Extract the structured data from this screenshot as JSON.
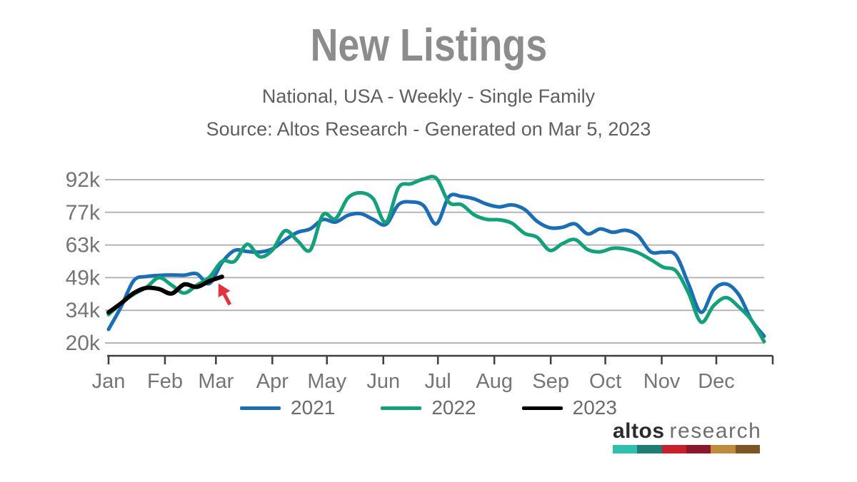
{
  "header": {
    "title": "New Listings",
    "subtitle": "National, USA - Weekly - Single Family",
    "source_line": "Source: Altos Research - Generated on Mar 5, 2023"
  },
  "chart_data": {
    "type": "line",
    "title": "New Listings",
    "subtitle": "National, USA - Weekly - Single Family",
    "source": "Source: Altos Research - Generated on Mar 5, 2023",
    "unit": "new listings, thousands (weekly)",
    "x_axis": {
      "tick_labels": [
        "Jan",
        "Feb",
        "Mar",
        "Apr",
        "May",
        "Jun",
        "Jul",
        "Aug",
        "Sep",
        "Oct",
        "Nov",
        "Dec"
      ],
      "range": "full calendar year, weekly points",
      "grid": false
    },
    "y_axis": {
      "tick_labels": [
        "92k",
        "77k",
        "63k",
        "49k",
        "34k",
        "20k"
      ],
      "min_k": 20,
      "max_k": 92,
      "grid": true
    },
    "legend_position": "bottom-center",
    "series": [
      {
        "name": "2021",
        "color": "#1b6eb5",
        "values_k": [
          26,
          36,
          47.5,
          49.3,
          49.8,
          50,
          49.9,
          50.5,
          46.2,
          55.5,
          60.8,
          60.3,
          60.1,
          61.5,
          65.5,
          68.8,
          70.3,
          74.4,
          73.3,
          76.3,
          77,
          74.5,
          72.3,
          81,
          82.2,
          80.5,
          72.5,
          84.5,
          84.6,
          83.5,
          81.2,
          80,
          80.9,
          78.9,
          73.6,
          70.8,
          71,
          72.5,
          68.1,
          70.3,
          68.8,
          69.7,
          67.3,
          60.2,
          60,
          58.7,
          46,
          33.5,
          43.5,
          46,
          41.2,
          30,
          23
        ]
      },
      {
        "name": "2022",
        "color": "#12a17a",
        "values_k": [
          32.5,
          37.5,
          41.5,
          44.5,
          48.8,
          45.5,
          42,
          45.5,
          49,
          56,
          56,
          63.5,
          58,
          61,
          69.5,
          65,
          61,
          76.5,
          74.8,
          84,
          86.2,
          83.5,
          73.2,
          88.5,
          90.2,
          92.3,
          92.6,
          82,
          81,
          76.5,
          74.5,
          74.3,
          72.8,
          68.3,
          66.6,
          60.8,
          63.8,
          65.6,
          61.2,
          60.2,
          61.8,
          61.4,
          59.8,
          56.8,
          53.4,
          51.8,
          42,
          29.2,
          36.5,
          40,
          35.8,
          30,
          20.6
        ]
      },
      {
        "name": "2023",
        "color": "#000000",
        "values_k": [
          33.5,
          37.5,
          42,
          44.3,
          43.8,
          41.8,
          45.8,
          44.7,
          47.3,
          49.2
        ]
      }
    ],
    "annotation": {
      "shape": "arrow",
      "color": "#e5313b",
      "target": "end of 2023 line (~49k, week of Mar 5)"
    }
  },
  "branding": {
    "bold": "altos",
    "light": "research",
    "bar_colors": [
      "#30bfae",
      "#1e7e76",
      "#c7222c",
      "#8a1a2b",
      "#bf8c3e",
      "#7c5624"
    ]
  }
}
